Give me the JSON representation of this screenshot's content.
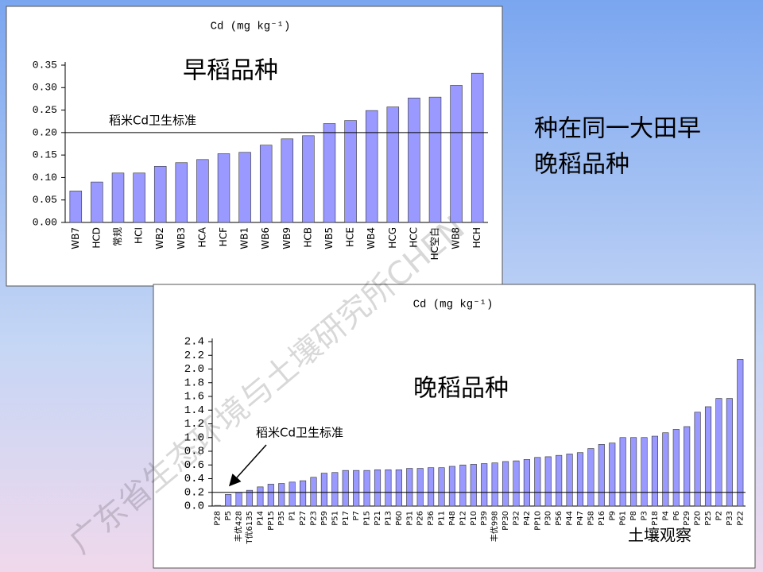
{
  "chart_data": [
    {
      "type": "bar",
      "title": "Cd (mg kg⁻¹)",
      "annotation": "早稻品种",
      "standard_label": "稻米Cd卫生标准",
      "standard": 0.2,
      "categories": [
        "WB7",
        "HCD",
        "常规",
        "HCI",
        "WB2",
        "WB3",
        "HCA",
        "HCF",
        "WB1",
        "WB6",
        "WB9",
        "HCB",
        "WB5",
        "HCE",
        "WB4",
        "HCG",
        "HCC",
        "HC空白",
        "WB8",
        "HCH"
      ],
      "values": [
        0.07,
        0.09,
        0.11,
        0.11,
        0.125,
        0.133,
        0.14,
        0.153,
        0.156,
        0.172,
        0.186,
        0.193,
        0.22,
        0.227,
        0.249,
        0.257,
        0.277,
        0.279,
        0.305,
        0.332
      ],
      "color": "#9999ff",
      "ylim": [
        0,
        0.35
      ],
      "yticks": [
        {
          "value": 0,
          "label": "0.00"
        },
        0.05,
        {
          "value": 0.1,
          "label": "0.10"
        },
        0.15,
        {
          "value": 0.2,
          "label": "0.20"
        },
        0.25,
        {
          "value": 0.3,
          "label": "0.30"
        },
        0.35
      ]
    },
    {
      "type": "bar",
      "title": "Cd (mg kg⁻¹)",
      "annotation": "晚稻品种",
      "standard_label": "稻米Cd卫生标准",
      "standard": 0.2,
      "categories": [
        "P28",
        "P5",
        "丰优428",
        "T优6135",
        "P14",
        "PP15",
        "P35",
        "P1",
        "P27",
        "P23",
        "P59",
        "P51",
        "P17",
        "P7",
        "P15",
        "P21",
        "P13",
        "P60",
        "P31",
        "P26",
        "P36",
        "P11",
        "P48",
        "P12",
        "P10",
        "P39",
        "丰优998",
        "PP30",
        "P32",
        "P42",
        "PP10",
        "P30",
        "P56",
        "P44",
        "P47",
        "P58",
        "P16",
        "P9",
        "P61",
        "P8",
        "P3",
        "P18",
        "P4",
        "P6",
        "P29",
        "P20",
        "P25",
        "P2",
        "P33",
        "P22"
      ],
      "values": [
        0.01,
        0.17,
        0.2,
        0.23,
        0.28,
        0.32,
        0.33,
        0.35,
        0.37,
        0.42,
        0.48,
        0.49,
        0.52,
        0.52,
        0.52,
        0.53,
        0.53,
        0.53,
        0.55,
        0.55,
        0.56,
        0.56,
        0.58,
        0.6,
        0.61,
        0.62,
        0.63,
        0.65,
        0.66,
        0.68,
        0.71,
        0.72,
        0.74,
        0.76,
        0.78,
        0.84,
        0.9,
        0.92,
        1.0,
        1.0,
        1.0,
        1.02,
        1.07,
        1.12,
        1.16,
        1.37,
        1.45,
        1.57,
        1.57,
        2.14
      ],
      "color": "#9999ff",
      "ylim": [
        0,
        2.4
      ],
      "yticks": [
        {
          "value": 0,
          "label": "0.0"
        },
        0.2,
        0.4,
        0.6,
        0.8,
        {
          "value": 1,
          "label": "1.0"
        },
        1.2,
        1.4,
        1.6,
        1.8,
        {
          "value": 2,
          "label": "2.0"
        },
        2.2,
        2.4
      ]
    }
  ],
  "slide": {
    "caption": [
      "种在同一大田早",
      "晚稻品种"
    ],
    "watermark": "广东省生态环境与土壤研究所CHEN",
    "logo": "土壤观察"
  }
}
